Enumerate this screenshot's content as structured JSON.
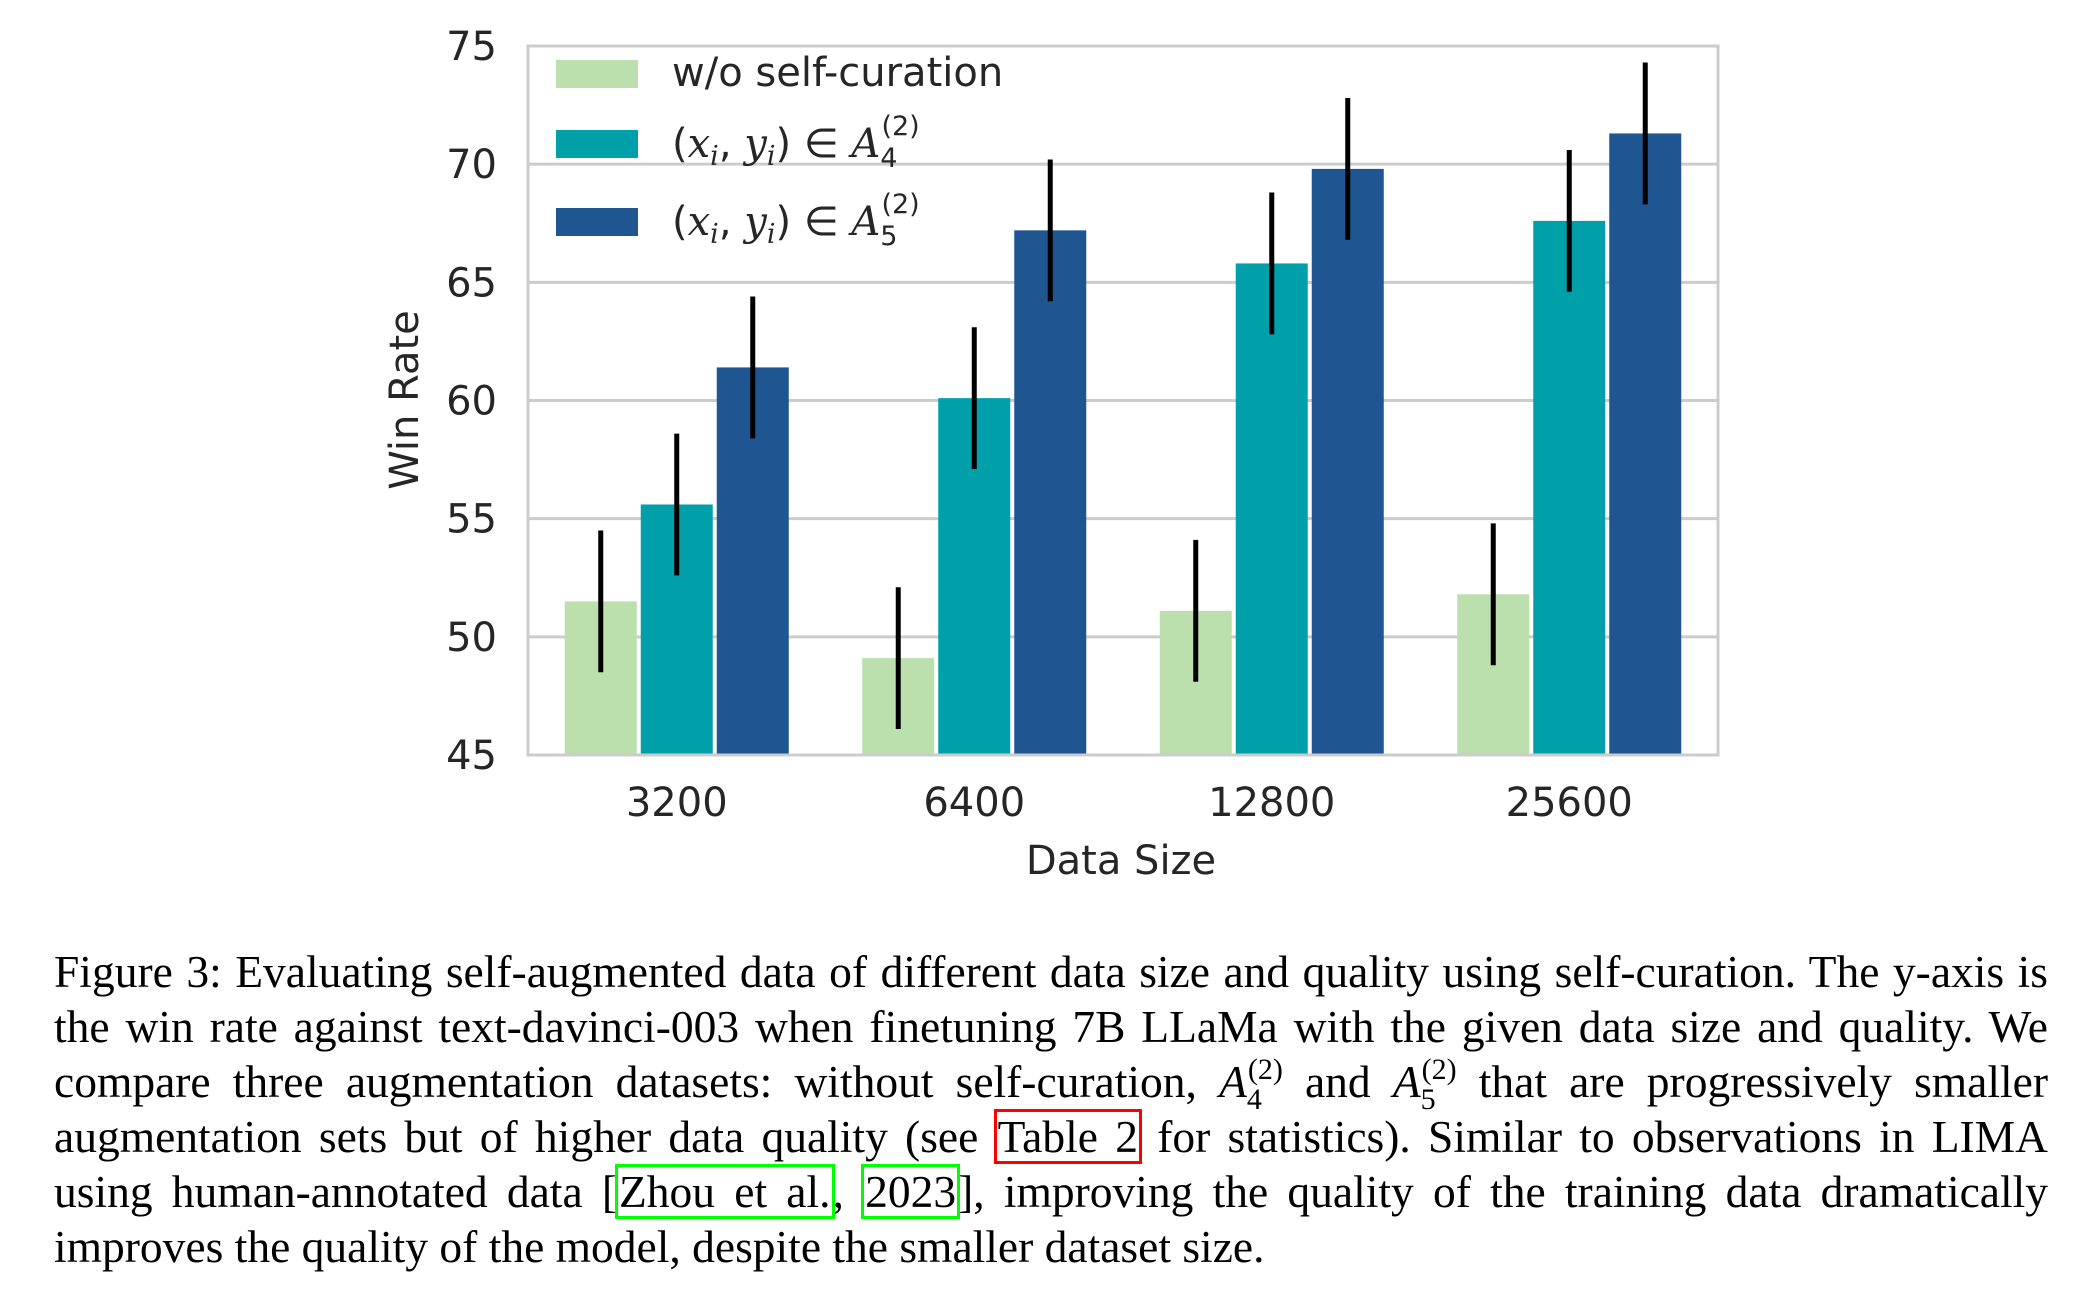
{
  "chart_data": {
    "type": "bar",
    "title": "",
    "xlabel": "Data Size",
    "ylabel": "Win Rate",
    "ylim": [
      45,
      75
    ],
    "yticks": [
      45,
      50,
      55,
      60,
      65,
      70,
      75
    ],
    "categories": [
      "3200",
      "6400",
      "12800",
      "25600"
    ],
    "grid": "horizontal",
    "legend_position": "top-left",
    "series": [
      {
        "name": "w/o self-curation",
        "color": "#bbe0ad",
        "values": [
          51.5,
          49.1,
          51.1,
          51.8
        ],
        "errors": [
          3.0,
          3.0,
          3.0,
          3.0
        ]
      },
      {
        "name": "(x_i, y_i) ∈ A_4^(2)",
        "color": "#00a0ab",
        "values": [
          55.6,
          60.1,
          65.8,
          67.6
        ],
        "errors": [
          3.0,
          3.0,
          3.0,
          3.0
        ]
      },
      {
        "name": "(x_i, y_i) ∈ A_5^(2)",
        "color": "#1f5591",
        "values": [
          61.4,
          67.2,
          69.8,
          71.3
        ],
        "errors": [
          3.0,
          3.0,
          3.0,
          3.0
        ]
      }
    ],
    "legend_parts": [
      {
        "text": "w/o self-curation"
      },
      {
        "paren_open": "(",
        "x": "x",
        "i1": "i",
        "comma": ", ",
        "y": "y",
        "i2": "i",
        "paren_close": ")",
        "in": " ∈ ",
        "set": "A",
        "sub": "4",
        "sup": "(2)"
      },
      {
        "paren_open": "(",
        "x": "x",
        "i1": "i",
        "comma": ", ",
        "y": "y",
        "i2": "i",
        "paren_close": ")",
        "in": " ∈ ",
        "set": "A",
        "sub": "5",
        "sup": "(2)"
      }
    ]
  },
  "caption": {
    "part1": "Figure 3: Evaluating self-augmented data of different data size and quality using self-curation. The y-axis is the win rate against text-davinci-003 when finetuning 7B LLaMa with the given data size and quality. We compare three augmentation datasets: without self-curation, ",
    "set_a": "A",
    "sub4": "4",
    "sup2a": "(2)",
    "and": " and ",
    "set_b": "A",
    "sub5": "5",
    "sup2b": "(2)",
    "part2": " that are progressively smaller augmentation sets but of higher data quality (see ",
    "table_ref": "Table 2",
    "part3": " for statistics). Similar to observations in LIMA using human-annotated data [",
    "cite_author": "Zhou et al.",
    "cite_sep": ", ",
    "cite_year": "2023",
    "part4": "], improving the quality of the training data dramatically improves the quality of the model, despite the smaller dataset size."
  }
}
